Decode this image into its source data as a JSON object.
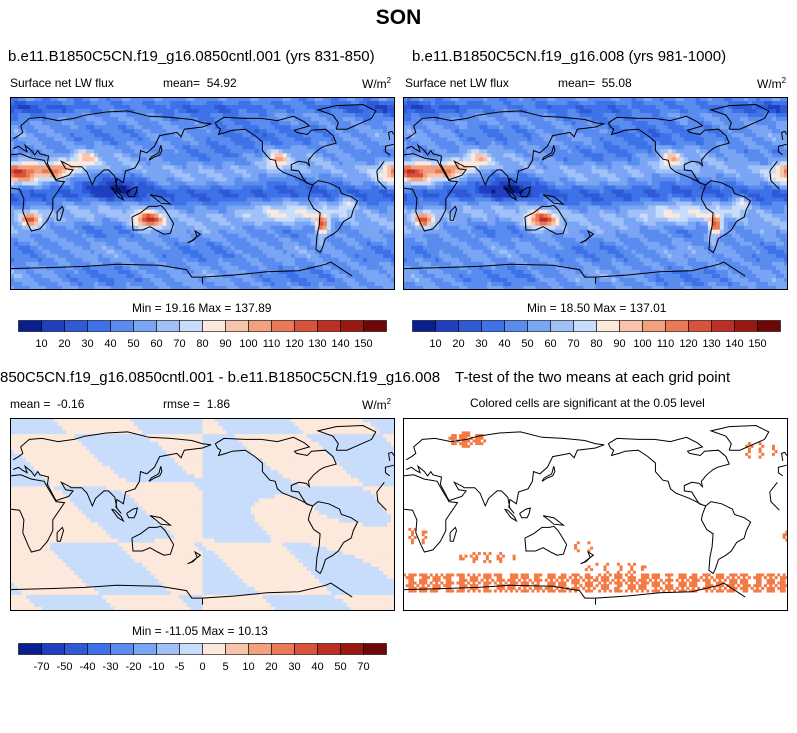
{
  "title": "SON",
  "panels": [
    {
      "id": "top-left",
      "run_title": "b.e11.B1850C5CN.f19_g16.0850cntl.001 (yrs 831-850)",
      "variable": "Surface net LW flux",
      "mean_label": "mean=",
      "mean_value": "54.92",
      "units": "W/m",
      "units_exp": "2",
      "stats": "Min =  19.16 Max =  137.89"
    },
    {
      "id": "top-right",
      "run_title": "b.e11.B1850C5CN.f19_g16.008 (yrs 981-1000)",
      "variable": "Surface net LW flux",
      "mean_label": "mean=",
      "mean_value": "55.08",
      "units": "W/m",
      "units_exp": "2",
      "stats": "Min =  18.50 Max =  137.01"
    },
    {
      "id": "bottom-left",
      "run_title": "850C5CN.f19_g16.0850cntl.001 - b.e11.B1850C5CN.f19_g16.008",
      "mean_label": "mean =",
      "mean_value": "-0.16",
      "rmse_label": "rmse =",
      "rmse_value": "1.86",
      "units": "W/m",
      "units_exp": "2",
      "stats": "Min = -11.05 Max =  10.13"
    },
    {
      "id": "bottom-right",
      "run_title": "T-test of the two means at each grid point",
      "subtitle": "Colored cells are significant at the 0.05 level"
    }
  ],
  "chart_data": [
    {
      "type": "heatmap",
      "title": "b.e11.B1850C5CN.f19_g16.0850cntl.001 (yrs 831-850)",
      "variable": "Surface net LW flux",
      "units": "W/m2",
      "mean": 54.92,
      "min": 19.16,
      "max": 137.89,
      "colorbar_levels": [
        "10",
        "20",
        "30",
        "40",
        "50",
        "60",
        "70",
        "80",
        "90",
        "100",
        "110",
        "120",
        "130",
        "140",
        "150"
      ],
      "colorbar_colors": [
        "#0a1f8f",
        "#1f3fbf",
        "#2e5ad8",
        "#3d72e8",
        "#5a8cf0",
        "#7aa5f5",
        "#a0c0f8",
        "#c8dcfb",
        "#fde8dc",
        "#f8c5ac",
        "#f3a07f",
        "#ea7a55",
        "#d8533a",
        "#bd2f25",
        "#9a1712",
        "#6e0808"
      ]
    },
    {
      "type": "heatmap",
      "title": "b.e11.B1850C5CN.f19_g16.008 (yrs 981-1000)",
      "variable": "Surface net LW flux",
      "units": "W/m2",
      "mean": 55.08,
      "min": 18.5,
      "max": 137.01,
      "colorbar_levels": [
        "10",
        "20",
        "30",
        "40",
        "50",
        "60",
        "70",
        "80",
        "90",
        "100",
        "110",
        "120",
        "130",
        "140",
        "150"
      ],
      "colorbar_colors": [
        "#0a1f8f",
        "#1f3fbf",
        "#2e5ad8",
        "#3d72e8",
        "#5a8cf0",
        "#7aa5f5",
        "#a0c0f8",
        "#c8dcfb",
        "#fde8dc",
        "#f8c5ac",
        "#f3a07f",
        "#ea7a55",
        "#d8533a",
        "#bd2f25",
        "#9a1712",
        "#6e0808"
      ]
    },
    {
      "type": "heatmap",
      "title": "850C5CN.f19_g16.0850cntl.001 - b.e11.B1850C5CN.f19_g16.008",
      "units": "W/m2",
      "mean": -0.16,
      "rmse": 1.86,
      "min": -11.05,
      "max": 10.13,
      "colorbar_levels": [
        "-70",
        "-50",
        "-40",
        "-30",
        "-20",
        "-10",
        "-5",
        "0",
        "5",
        "10",
        "20",
        "30",
        "40",
        "50",
        "70"
      ],
      "colorbar_colors": [
        "#0a1f8f",
        "#1f3fbf",
        "#2e5ad8",
        "#3d72e8",
        "#5a8cf0",
        "#7aa5f5",
        "#a0c0f8",
        "#c8dcfb",
        "#fde8dc",
        "#f8c5ac",
        "#f3a07f",
        "#ea7a55",
        "#d8533a",
        "#bd2f25",
        "#9a1712",
        "#6e0808"
      ]
    },
    {
      "type": "heatmap",
      "title": "T-test of the two means at each grid point",
      "subtitle": "Colored cells are significant at the 0.05 level",
      "significant_color": "#f47a45"
    }
  ]
}
